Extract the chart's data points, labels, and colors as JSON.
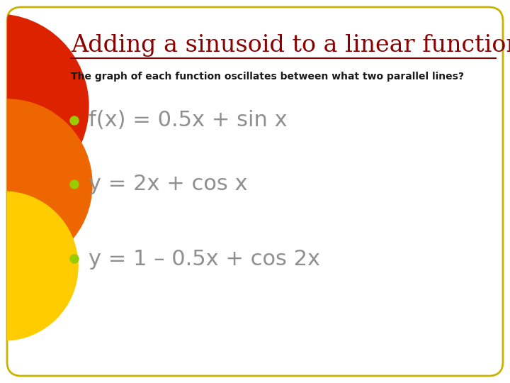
{
  "title": "Adding a sinusoid to a linear function",
  "subtitle": "The graph of each function oscillates between what two parallel lines?",
  "bullets": [
    "f(x) = 0.5x + sin x",
    "y = 2x + cos x",
    "y = 1 – 0.5x + cos 2x"
  ],
  "bg_color": "#FFFFFF",
  "border_color": "#C8B400",
  "title_color": "#8B0000",
  "subtitle_color": "#1a1a1a",
  "bullet_color": "#99CC00",
  "text_color": "#909090",
  "deco_red": "#DD2200",
  "deco_orange": "#EE6600",
  "deco_yellow": "#FFCC00"
}
